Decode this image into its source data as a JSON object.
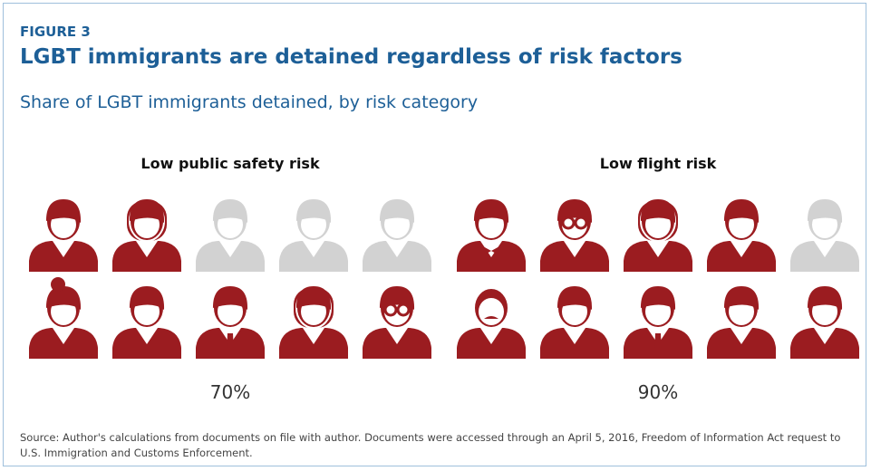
{
  "chart_data": {
    "type": "icon-array",
    "figure_label": "FIGURE 3",
    "title": "LGBT immigrants are detained regardless of risk factors",
    "subtitle": "Share of LGBT immigrants detained, by risk category",
    "categories": [
      "Low public safety risk",
      "Low flight risk"
    ],
    "values": [
      70,
      90
    ],
    "value_labels": [
      "70%",
      "90%"
    ],
    "ylim": [
      0,
      100
    ],
    "icon_count": 10,
    "color": "#9b1c20",
    "empty_color": "#d2d2d2",
    "source": "Source: Author's calculations from documents on file with author. Documents were accessed through an April 5, 2016, Freedom of Information Act request to U.S. Immigration and Customs Enforcement."
  }
}
